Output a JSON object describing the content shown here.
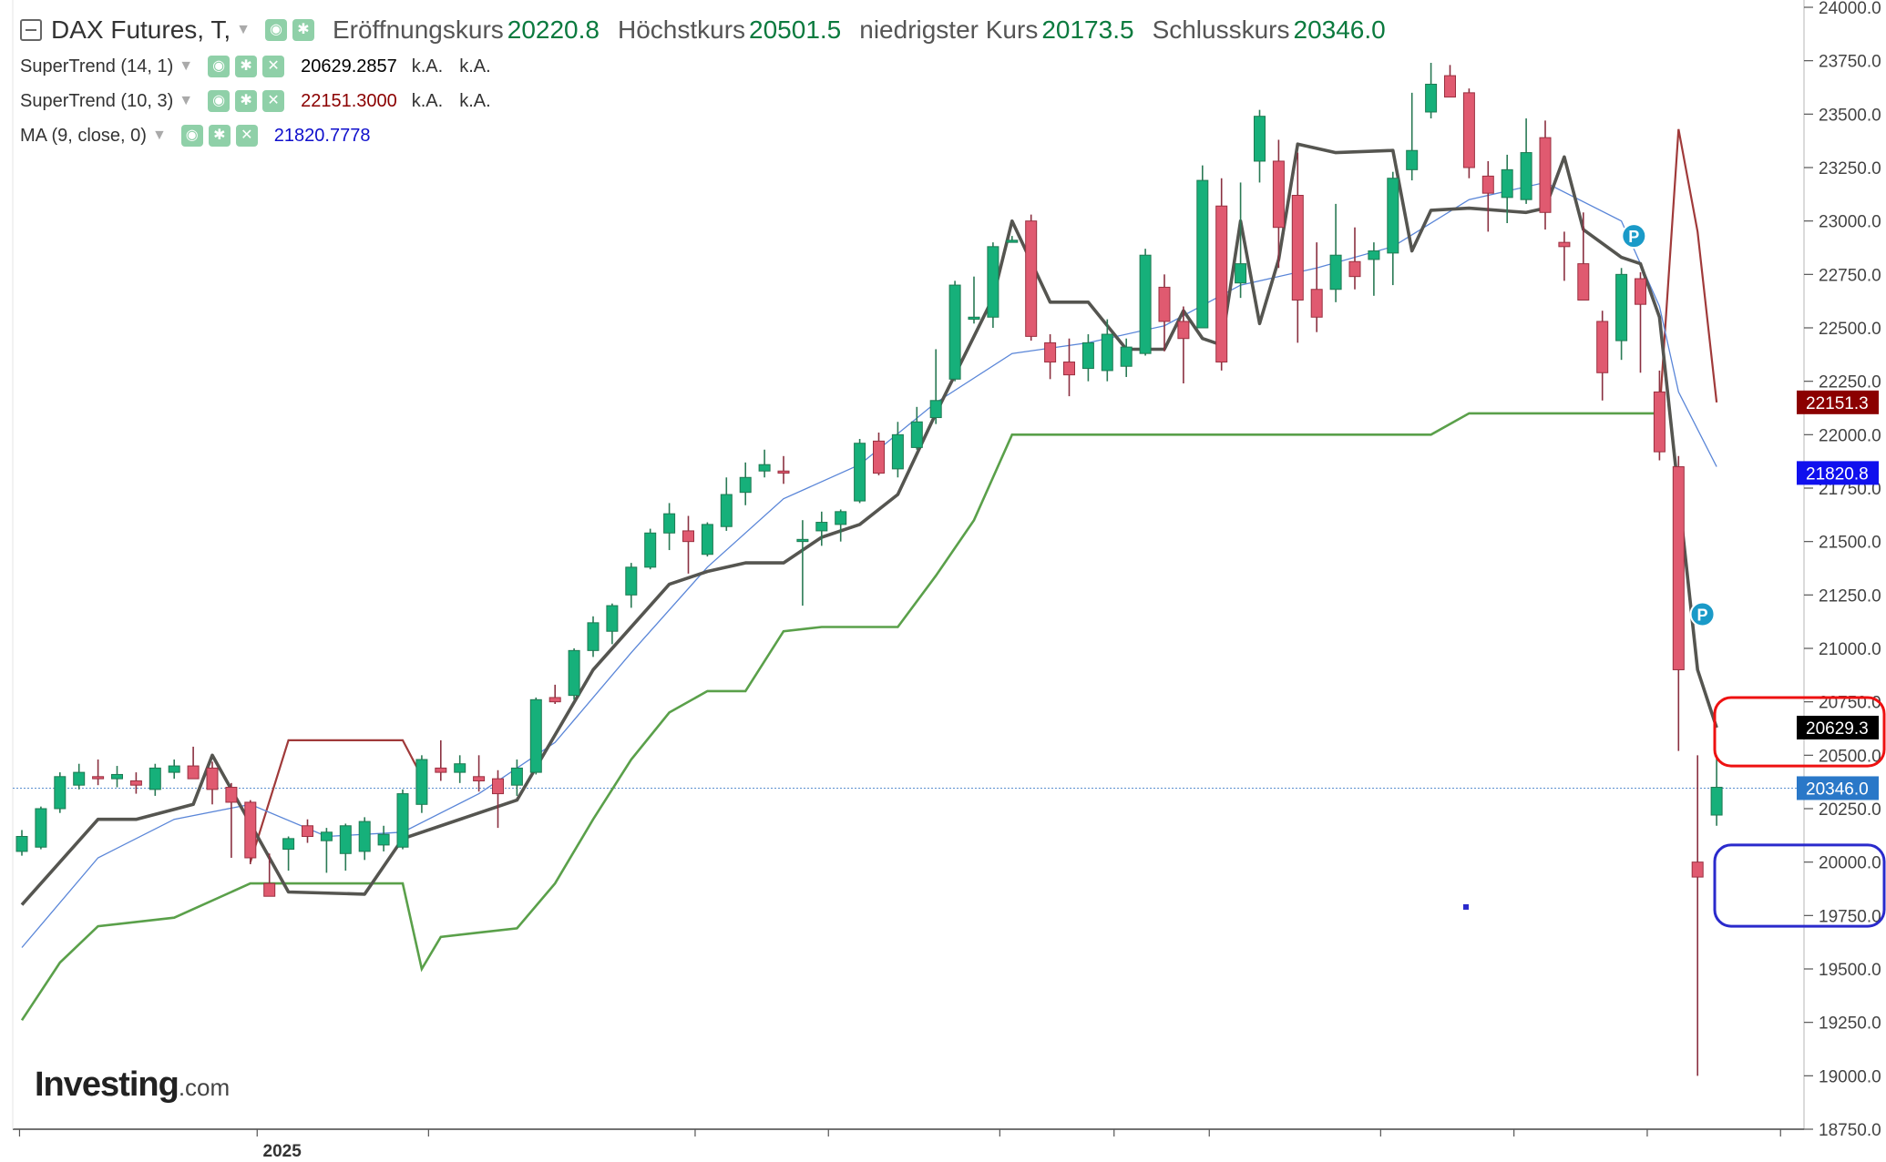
{
  "legend": {
    "symbol": "DAX Futures, T,",
    "open_label": "Eröffnungskurs",
    "open_value": "20220.8",
    "high_label": "Höchstkurs",
    "high_value": "20501.5",
    "low_label": "niedrigster Kurs",
    "low_value": "20173.5",
    "close_label": "Schlusskurs",
    "close_value": "20346.0",
    "indicators": [
      {
        "name": "SuperTrend (14, 1)",
        "value": "20629.2857",
        "color": "#000000",
        "na1": "k.A.",
        "na2": "k.A."
      },
      {
        "name": "SuperTrend (10, 3)",
        "value": "22151.3000",
        "color": "#8b0000",
        "na1": "k.A.",
        "na2": "k.A."
      },
      {
        "name": "MA (9, close, 0)",
        "value": "21820.7778",
        "color": "#1010cc"
      }
    ]
  },
  "brand": {
    "name": "Investing",
    "suffix": ".com"
  },
  "chart_data": {
    "type": "candlestick",
    "y_axis": {
      "min": 18750,
      "max": 24000,
      "ticks": [
        "24000.0",
        "23750.0",
        "23500.0",
        "23250.0",
        "23000.0",
        "22750.0",
        "22500.0",
        "22250.0",
        "22000.0",
        "21750.0",
        "21500.0",
        "21250.0",
        "21000.0",
        "20750.0",
        "20500.0",
        "20250.0",
        "20000.0",
        "19750.0",
        "19500.0",
        "19250.0",
        "19000.0",
        "18750.0"
      ],
      "position": "right"
    },
    "x_axis": {
      "labels": [
        "2025"
      ]
    },
    "price_labels": [
      {
        "text": "22151.3",
        "value": 22151.3,
        "bg": "#8b0000"
      },
      {
        "text": "21820.8",
        "value": 21820.8,
        "bg": "#1010ee"
      },
      {
        "text": "20629.3",
        "value": 20629.3,
        "bg": "#000000"
      },
      {
        "text": "20346.0",
        "value": 20346.0,
        "bg": "#2a78c8"
      }
    ],
    "current_price_line": 20346.0,
    "colors": {
      "up": "#16b07a",
      "down": "#e05a70",
      "st_fast": "#555550",
      "st_slow_up": "#5aa04a",
      "st_slow_down": "#a03a3a",
      "ma": "#5a86d8"
    },
    "candles": [
      {
        "o": 20050,
        "h": 20150,
        "l": 20030,
        "c": 20120
      },
      {
        "o": 20070,
        "h": 20260,
        "l": 20060,
        "c": 20250
      },
      {
        "o": 20250,
        "h": 20420,
        "l": 20230,
        "c": 20400
      },
      {
        "o": 20360,
        "h": 20460,
        "l": 20340,
        "c": 20420
      },
      {
        "o": 20400,
        "h": 20480,
        "l": 20360,
        "c": 20390
      },
      {
        "o": 20390,
        "h": 20450,
        "l": 20350,
        "c": 20410
      },
      {
        "o": 20380,
        "h": 20420,
        "l": 20320,
        "c": 20360
      },
      {
        "o": 20340,
        "h": 20460,
        "l": 20310,
        "c": 20440
      },
      {
        "o": 20420,
        "h": 20480,
        "l": 20390,
        "c": 20450
      },
      {
        "o": 20450,
        "h": 20540,
        "l": 20400,
        "c": 20390
      },
      {
        "o": 20440,
        "h": 20470,
        "l": 20270,
        "c": 20340
      },
      {
        "o": 20350,
        "h": 20370,
        "l": 20020,
        "c": 20280
      },
      {
        "o": 20280,
        "h": 20290,
        "l": 19990,
        "c": 20020
      },
      {
        "o": 19900,
        "h": 20040,
        "l": 19870,
        "c": 19840
      },
      {
        "o": 20060,
        "h": 20120,
        "l": 19960,
        "c": 20110
      },
      {
        "o": 20170,
        "h": 20200,
        "l": 20090,
        "c": 20120
      },
      {
        "o": 20100,
        "h": 20160,
        "l": 19950,
        "c": 20140
      },
      {
        "o": 20040,
        "h": 20180,
        "l": 19960,
        "c": 20170
      },
      {
        "o": 20050,
        "h": 20210,
        "l": 20010,
        "c": 20190
      },
      {
        "o": 20080,
        "h": 20170,
        "l": 20050,
        "c": 20130
      },
      {
        "o": 20070,
        "h": 20340,
        "l": 20060,
        "c": 20320
      },
      {
        "o": 20270,
        "h": 20500,
        "l": 20230,
        "c": 20480
      },
      {
        "o": 20440,
        "h": 20570,
        "l": 20380,
        "c": 20420
      },
      {
        "o": 20420,
        "h": 20500,
        "l": 20370,
        "c": 20460
      },
      {
        "o": 20400,
        "h": 20500,
        "l": 20330,
        "c": 20380
      },
      {
        "o": 20390,
        "h": 20430,
        "l": 20160,
        "c": 20320
      },
      {
        "o": 20360,
        "h": 20480,
        "l": 20310,
        "c": 20440
      },
      {
        "o": 20420,
        "h": 20770,
        "l": 20410,
        "c": 20760
      },
      {
        "o": 20770,
        "h": 20830,
        "l": 20740,
        "c": 20750
      },
      {
        "o": 20780,
        "h": 21000,
        "l": 20760,
        "c": 20990
      },
      {
        "o": 20990,
        "h": 21150,
        "l": 20960,
        "c": 21120
      },
      {
        "o": 21080,
        "h": 21210,
        "l": 21020,
        "c": 21200
      },
      {
        "o": 21250,
        "h": 21400,
        "l": 21190,
        "c": 21380
      },
      {
        "o": 21380,
        "h": 21560,
        "l": 21370,
        "c": 21540
      },
      {
        "o": 21540,
        "h": 21680,
        "l": 21460,
        "c": 21630
      },
      {
        "o": 21550,
        "h": 21620,
        "l": 21350,
        "c": 21500
      },
      {
        "o": 21440,
        "h": 21590,
        "l": 21430,
        "c": 21580
      },
      {
        "o": 21570,
        "h": 21800,
        "l": 21550,
        "c": 21720
      },
      {
        "o": 21730,
        "h": 21870,
        "l": 21670,
        "c": 21800
      },
      {
        "o": 21830,
        "h": 21930,
        "l": 21800,
        "c": 21860
      },
      {
        "o": 21830,
        "h": 21900,
        "l": 21770,
        "c": 21820
      },
      {
        "o": 21500,
        "h": 21600,
        "l": 21200,
        "c": 21510
      },
      {
        "o": 21550,
        "h": 21640,
        "l": 21480,
        "c": 21590
      },
      {
        "o": 21580,
        "h": 21650,
        "l": 21500,
        "c": 21640
      },
      {
        "o": 21690,
        "h": 21980,
        "l": 21680,
        "c": 21960
      },
      {
        "o": 21970,
        "h": 22010,
        "l": 21810,
        "c": 21820
      },
      {
        "o": 21840,
        "h": 22060,
        "l": 21800,
        "c": 22000
      },
      {
        "o": 21940,
        "h": 22130,
        "l": 21930,
        "c": 22060
      },
      {
        "o": 22080,
        "h": 22400,
        "l": 22050,
        "c": 22160
      },
      {
        "o": 22260,
        "h": 22720,
        "l": 22250,
        "c": 22700
      },
      {
        "o": 22540,
        "h": 22740,
        "l": 22520,
        "c": 22550
      },
      {
        "o": 22550,
        "h": 22900,
        "l": 22500,
        "c": 22880
      },
      {
        "o": 22900,
        "h": 22930,
        "l": 22900,
        "c": 22910
      },
      {
        "o": 23000,
        "h": 23030,
        "l": 22440,
        "c": 22460
      },
      {
        "o": 22430,
        "h": 22470,
        "l": 22260,
        "c": 22340
      },
      {
        "o": 22340,
        "h": 22450,
        "l": 22180,
        "c": 22280
      },
      {
        "o": 22310,
        "h": 22470,
        "l": 22250,
        "c": 22430
      },
      {
        "o": 22300,
        "h": 22540,
        "l": 22250,
        "c": 22470
      },
      {
        "o": 22320,
        "h": 22450,
        "l": 22270,
        "c": 22410
      },
      {
        "o": 22380,
        "h": 22870,
        "l": 22370,
        "c": 22840
      },
      {
        "o": 22690,
        "h": 22750,
        "l": 22390,
        "c": 22530
      },
      {
        "o": 22530,
        "h": 22600,
        "l": 22240,
        "c": 22450
      },
      {
        "o": 22500,
        "h": 23260,
        "l": 22500,
        "c": 23190
      },
      {
        "o": 23070,
        "h": 23200,
        "l": 22300,
        "c": 22340
      },
      {
        "o": 22710,
        "h": 23180,
        "l": 22640,
        "c": 22800
      },
      {
        "o": 23280,
        "h": 23520,
        "l": 23180,
        "c": 23490
      },
      {
        "o": 23280,
        "h": 23380,
        "l": 22780,
        "c": 22970
      },
      {
        "o": 23120,
        "h": 23320,
        "l": 22430,
        "c": 22630
      },
      {
        "o": 22680,
        "h": 22900,
        "l": 22480,
        "c": 22550
      },
      {
        "o": 22680,
        "h": 23080,
        "l": 22620,
        "c": 22840
      },
      {
        "o": 22810,
        "h": 22970,
        "l": 22680,
        "c": 22740
      },
      {
        "o": 22820,
        "h": 22900,
        "l": 22650,
        "c": 22860
      },
      {
        "o": 22850,
        "h": 23230,
        "l": 22700,
        "c": 23200
      },
      {
        "o": 23240,
        "h": 23600,
        "l": 23190,
        "c": 23330
      },
      {
        "o": 23510,
        "h": 23740,
        "l": 23480,
        "c": 23640
      },
      {
        "o": 23680,
        "h": 23730,
        "l": 23600,
        "c": 23580
      },
      {
        "o": 23600,
        "h": 23620,
        "l": 23200,
        "c": 23250
      },
      {
        "o": 23210,
        "h": 23280,
        "l": 22950,
        "c": 23130
      },
      {
        "o": 23110,
        "h": 23310,
        "l": 22990,
        "c": 23240
      },
      {
        "o": 23100,
        "h": 23480,
        "l": 23080,
        "c": 23320
      },
      {
        "o": 23390,
        "h": 23470,
        "l": 22960,
        "c": 23040
      },
      {
        "o": 22900,
        "h": 22950,
        "l": 22720,
        "c": 22880
      },
      {
        "o": 22800,
        "h": 23040,
        "l": 22640,
        "c": 22630
      },
      {
        "o": 22530,
        "h": 22580,
        "l": 22160,
        "c": 22290
      },
      {
        "o": 22440,
        "h": 22780,
        "l": 22350,
        "c": 22750
      },
      {
        "o": 22730,
        "h": 22760,
        "l": 22290,
        "c": 22610
      },
      {
        "o": 22200,
        "h": 22300,
        "l": 21880,
        "c": 21920
      },
      {
        "o": 21850,
        "h": 21900,
        "l": 20520,
        "c": 20900
      },
      {
        "o": 20000,
        "h": 20500,
        "l": 19000,
        "c": 19930
      },
      {
        "o": 20220,
        "h": 20500,
        "l": 20170,
        "c": 20350
      }
    ],
    "indicator_points": {
      "ma": [
        [
          0,
          19600
        ],
        [
          4,
          20020
        ],
        [
          8,
          20200
        ],
        [
          12,
          20270
        ],
        [
          16,
          20120
        ],
        [
          20,
          20140
        ],
        [
          24,
          20320
        ],
        [
          28,
          20560
        ],
        [
          32,
          20980
        ],
        [
          36,
          21380
        ],
        [
          40,
          21700
        ],
        [
          44,
          21860
        ],
        [
          48,
          22150
        ],
        [
          52,
          22380
        ],
        [
          56,
          22430
        ],
        [
          60,
          22510
        ],
        [
          64,
          22700
        ],
        [
          68,
          22780
        ],
        [
          72,
          22880
        ],
        [
          76,
          23100
        ],
        [
          80,
          23180
        ],
        [
          84,
          23000
        ],
        [
          86,
          22600
        ],
        [
          87,
          22200
        ],
        [
          89,
          21850
        ]
      ],
      "st_fast": [
        [
          0,
          19800
        ],
        [
          4,
          20200
        ],
        [
          6,
          20200
        ],
        [
          9,
          20270
        ],
        [
          10,
          20500
        ],
        [
          14,
          19860
        ],
        [
          18,
          19850
        ],
        [
          20,
          20110
        ],
        [
          24,
          20230
        ],
        [
          26,
          20290
        ],
        [
          30,
          20900
        ],
        [
          32,
          21100
        ],
        [
          34,
          21300
        ],
        [
          36,
          21360
        ],
        [
          38,
          21400
        ],
        [
          40,
          21400
        ],
        [
          42,
          21520
        ],
        [
          44,
          21580
        ],
        [
          46,
          21720
        ],
        [
          48,
          22100
        ],
        [
          50,
          22460
        ],
        [
          51,
          22640
        ],
        [
          52,
          23000
        ],
        [
          54,
          22620
        ],
        [
          56,
          22620
        ],
        [
          58,
          22400
        ],
        [
          60,
          22400
        ],
        [
          61,
          22580
        ],
        [
          62,
          22450
        ],
        [
          63,
          22420
        ],
        [
          64,
          23000
        ],
        [
          65,
          22520
        ],
        [
          66,
          22820
        ],
        [
          67,
          23360
        ],
        [
          69,
          23320
        ],
        [
          72,
          23330
        ],
        [
          73,
          22860
        ],
        [
          74,
          23050
        ],
        [
          76,
          23060
        ],
        [
          79,
          23040
        ],
        [
          80,
          23060
        ],
        [
          81,
          23300
        ],
        [
          82,
          22960
        ],
        [
          84,
          22830
        ],
        [
          85,
          22800
        ],
        [
          86,
          22550
        ],
        [
          88,
          20900
        ],
        [
          89,
          20629
        ]
      ],
      "st_slow_up": [
        [
          0,
          19260
        ],
        [
          2,
          19530
        ],
        [
          4,
          19700
        ],
        [
          8,
          19740
        ],
        [
          12,
          19900
        ],
        [
          20,
          19900
        ],
        [
          21,
          19500
        ],
        [
          22,
          19650
        ],
        [
          24,
          19670
        ],
        [
          26,
          19690
        ],
        [
          28,
          19900
        ],
        [
          30,
          20200
        ],
        [
          32,
          20480
        ],
        [
          34,
          20700
        ],
        [
          36,
          20800
        ],
        [
          38,
          20800
        ],
        [
          40,
          21080
        ],
        [
          42,
          21100
        ],
        [
          46,
          21100
        ],
        [
          48,
          21340
        ],
        [
          50,
          21600
        ],
        [
          52,
          22000
        ],
        [
          74,
          22000
        ],
        [
          76,
          22100
        ],
        [
          86,
          22100
        ]
      ],
      "st_slow_down": [
        [
          12,
          20000
        ],
        [
          14,
          20570
        ],
        [
          20,
          20570
        ],
        [
          21,
          20400
        ]
      ],
      "st_slow_down2": [
        [
          86,
          22100
        ],
        [
          87,
          23430
        ],
        [
          88,
          22950
        ],
        [
          89,
          22151
        ]
      ]
    }
  }
}
